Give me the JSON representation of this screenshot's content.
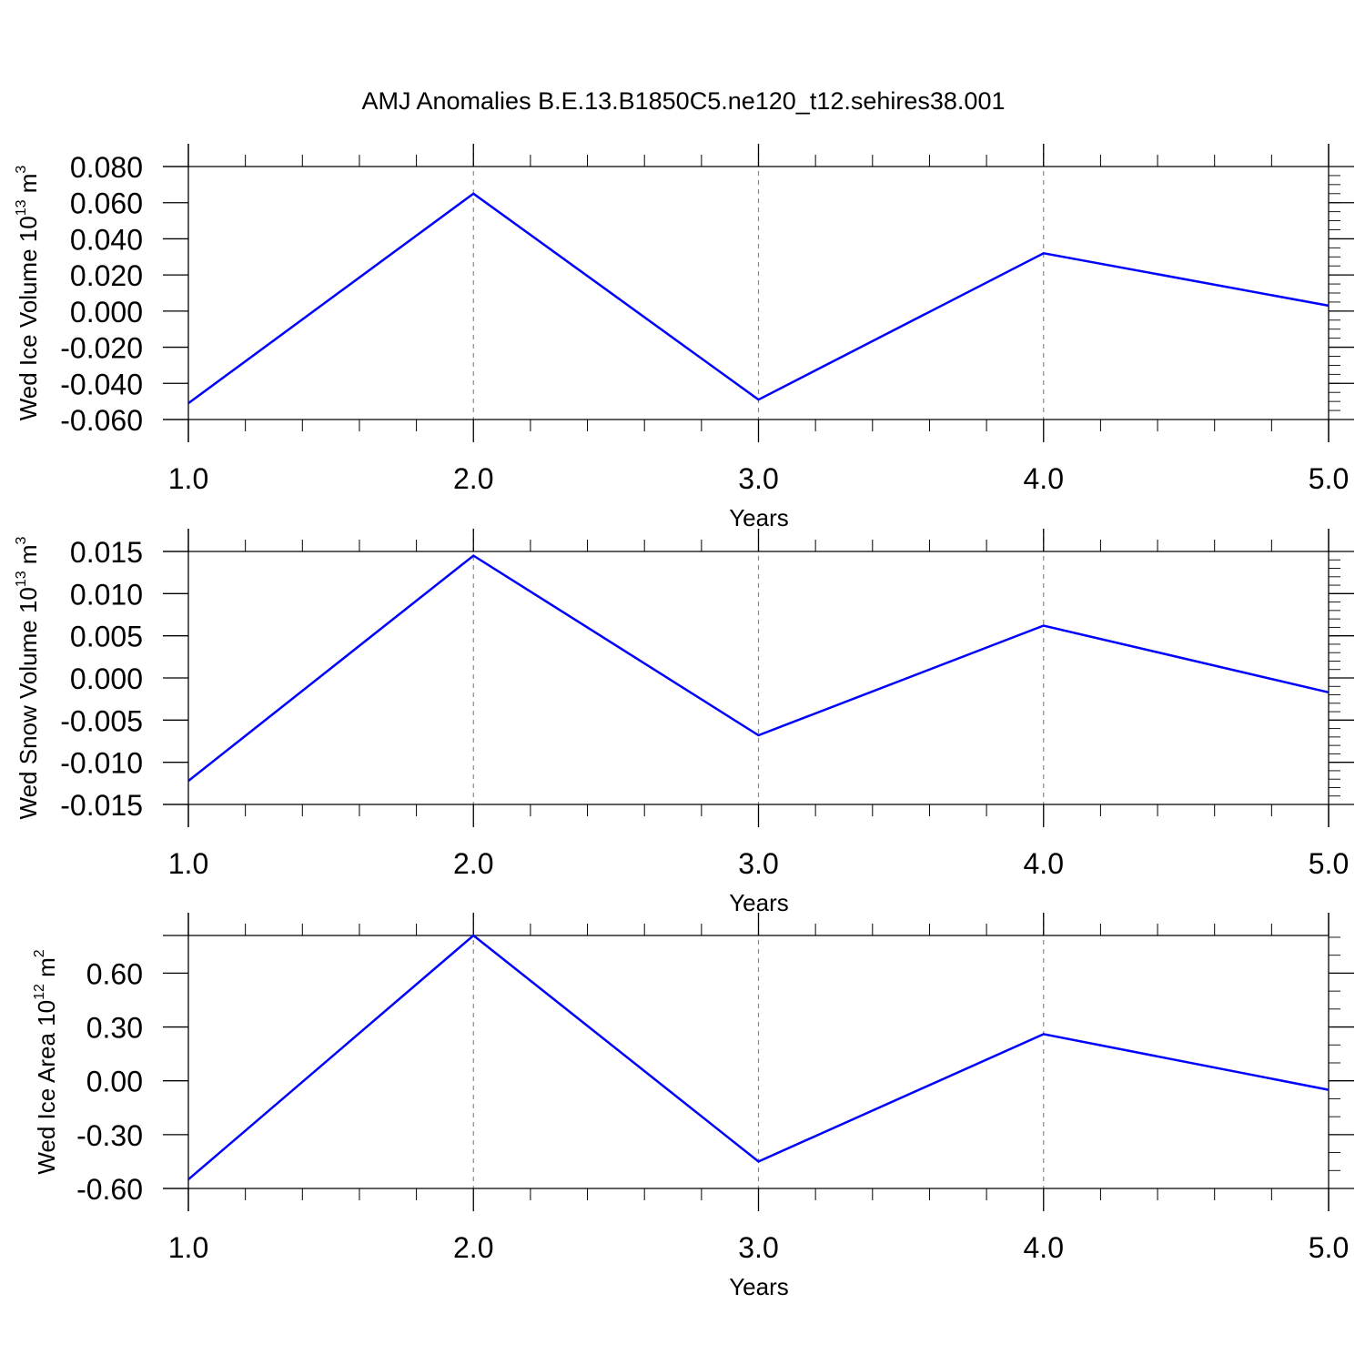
{
  "title": "AMJ Anomalies B.E.13.B1850C5.ne120_t12.sehires38.001",
  "line_color": "#0000ff",
  "chart_data": [
    {
      "type": "line",
      "xlabel": "Years",
      "ylabel": {
        "text": "Wed Ice Volume 10",
        "exponent": "13",
        "unit": " m",
        "unit_exponent": "3"
      },
      "x": [
        1.0,
        2.0,
        3.0,
        4.0,
        5.0
      ],
      "xticks": [
        "1.0",
        "2.0",
        "3.0",
        "4.0",
        "5.0"
      ],
      "xlim": [
        1.0,
        5.0
      ],
      "values": [
        -0.051,
        0.065,
        -0.049,
        0.032,
        0.003
      ],
      "yticks": [
        "0.080",
        "0.060",
        "0.040",
        "0.020",
        "0.000",
        "-0.020",
        "-0.040",
        "-0.060"
      ],
      "ytick_values": [
        0.08,
        0.06,
        0.04,
        0.02,
        0.0,
        -0.02,
        -0.04,
        -0.06
      ],
      "ylim": [
        -0.06,
        0.08
      ],
      "grid": "dashed vertical at major x ticks"
    },
    {
      "type": "line",
      "xlabel": "Years",
      "ylabel": {
        "text": "Wed Snow Volume 10",
        "exponent": "13",
        "unit": " m",
        "unit_exponent": "3"
      },
      "x": [
        1.0,
        2.0,
        3.0,
        4.0,
        5.0
      ],
      "xticks": [
        "1.0",
        "2.0",
        "3.0",
        "4.0",
        "5.0"
      ],
      "xlim": [
        1.0,
        5.0
      ],
      "values": [
        -0.0122,
        0.0145,
        -0.0068,
        0.0062,
        -0.0017
      ],
      "yticks": [
        "0.015",
        "0.010",
        "0.005",
        "0.000",
        "-0.005",
        "-0.010",
        "-0.015"
      ],
      "ytick_values": [
        0.015,
        0.01,
        0.005,
        0.0,
        -0.005,
        -0.01,
        -0.015
      ],
      "ylim": [
        -0.015,
        0.015
      ],
      "grid": "dashed vertical at major x ticks"
    },
    {
      "type": "line",
      "xlabel": "Years",
      "ylabel": {
        "text": "Wed Ice Area 10",
        "exponent": "12",
        "unit": " m",
        "unit_exponent": "2"
      },
      "x": [
        1.0,
        2.0,
        3.0,
        4.0,
        5.0
      ],
      "xticks": [
        "1.0",
        "2.0",
        "3.0",
        "4.0",
        "5.0"
      ],
      "xlim": [
        1.0,
        5.0
      ],
      "values": [
        -0.55,
        0.81,
        -0.45,
        0.26,
        -0.05
      ],
      "yticks": [
        "0.60",
        "0.30",
        "0.00",
        "-0.30",
        "-0.60"
      ],
      "ytick_values": [
        0.6,
        0.3,
        0.0,
        -0.3,
        -0.6
      ],
      "ylim": [
        -0.6,
        0.81
      ],
      "grid": "dashed vertical at major x ticks"
    }
  ]
}
